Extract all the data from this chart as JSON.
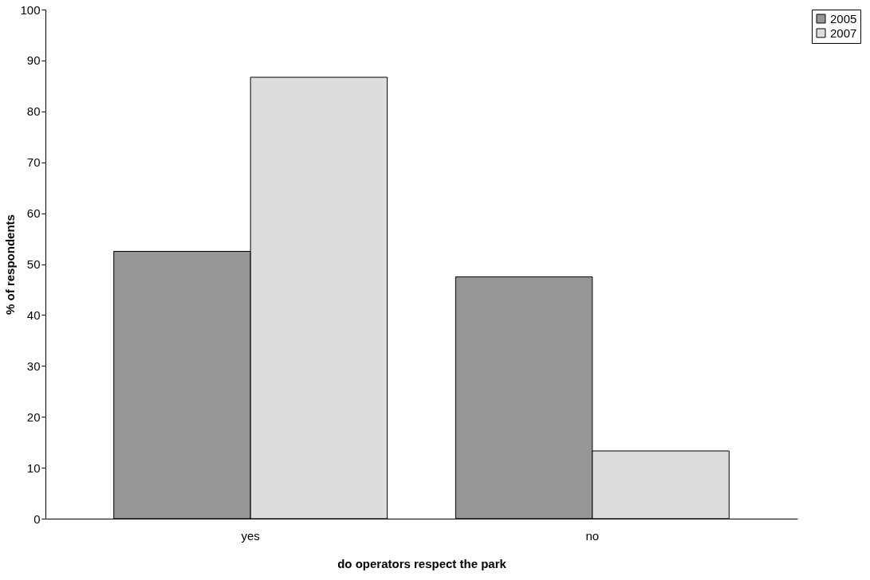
{
  "chart_data": {
    "type": "bar",
    "xlabel": "do operators respect the park",
    "ylabel": "% of respondents",
    "categories": [
      "yes",
      "no"
    ],
    "series": [
      {
        "name": "2005",
        "color": "#969696",
        "values": [
          52.5,
          47.5
        ]
      },
      {
        "name": "2007",
        "color": "#dddddd",
        "values": [
          86.7,
          13.3
        ]
      }
    ],
    "ylim": [
      0,
      100
    ],
    "yticks": [
      0,
      10,
      20,
      30,
      40,
      50,
      60,
      70,
      80,
      90,
      100
    ],
    "grid": false,
    "legend": "right"
  }
}
